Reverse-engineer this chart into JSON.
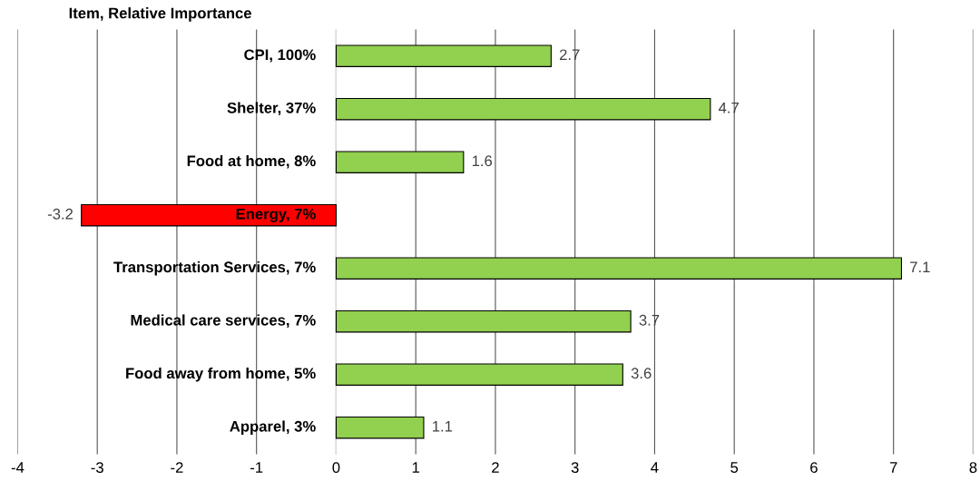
{
  "chart_data": {
    "type": "bar",
    "orientation": "horizontal",
    "title": "Item, Relative Importance",
    "categories": [
      "CPI, 100%",
      "Shelter, 37%",
      "Food at home, 8%",
      "Energy, 7%",
      "Transportation Services, 7%",
      "Medical care services, 7%",
      "Food away from home, 5%",
      "Apparel, 3%"
    ],
    "values": [
      2.7,
      4.7,
      1.6,
      -3.2,
      7.1,
      3.7,
      3.6,
      1.1
    ],
    "colors": [
      "#92d050",
      "#92d050",
      "#92d050",
      "#ff0000",
      "#92d050",
      "#92d050",
      "#92d050",
      "#92d050"
    ],
    "xlim": [
      -4,
      8
    ],
    "xticks": [
      -4,
      -3,
      -2,
      -1,
      0,
      1,
      2,
      3,
      4,
      5,
      6,
      7,
      8
    ],
    "grid": "x",
    "data_labels": true,
    "legend": false
  }
}
